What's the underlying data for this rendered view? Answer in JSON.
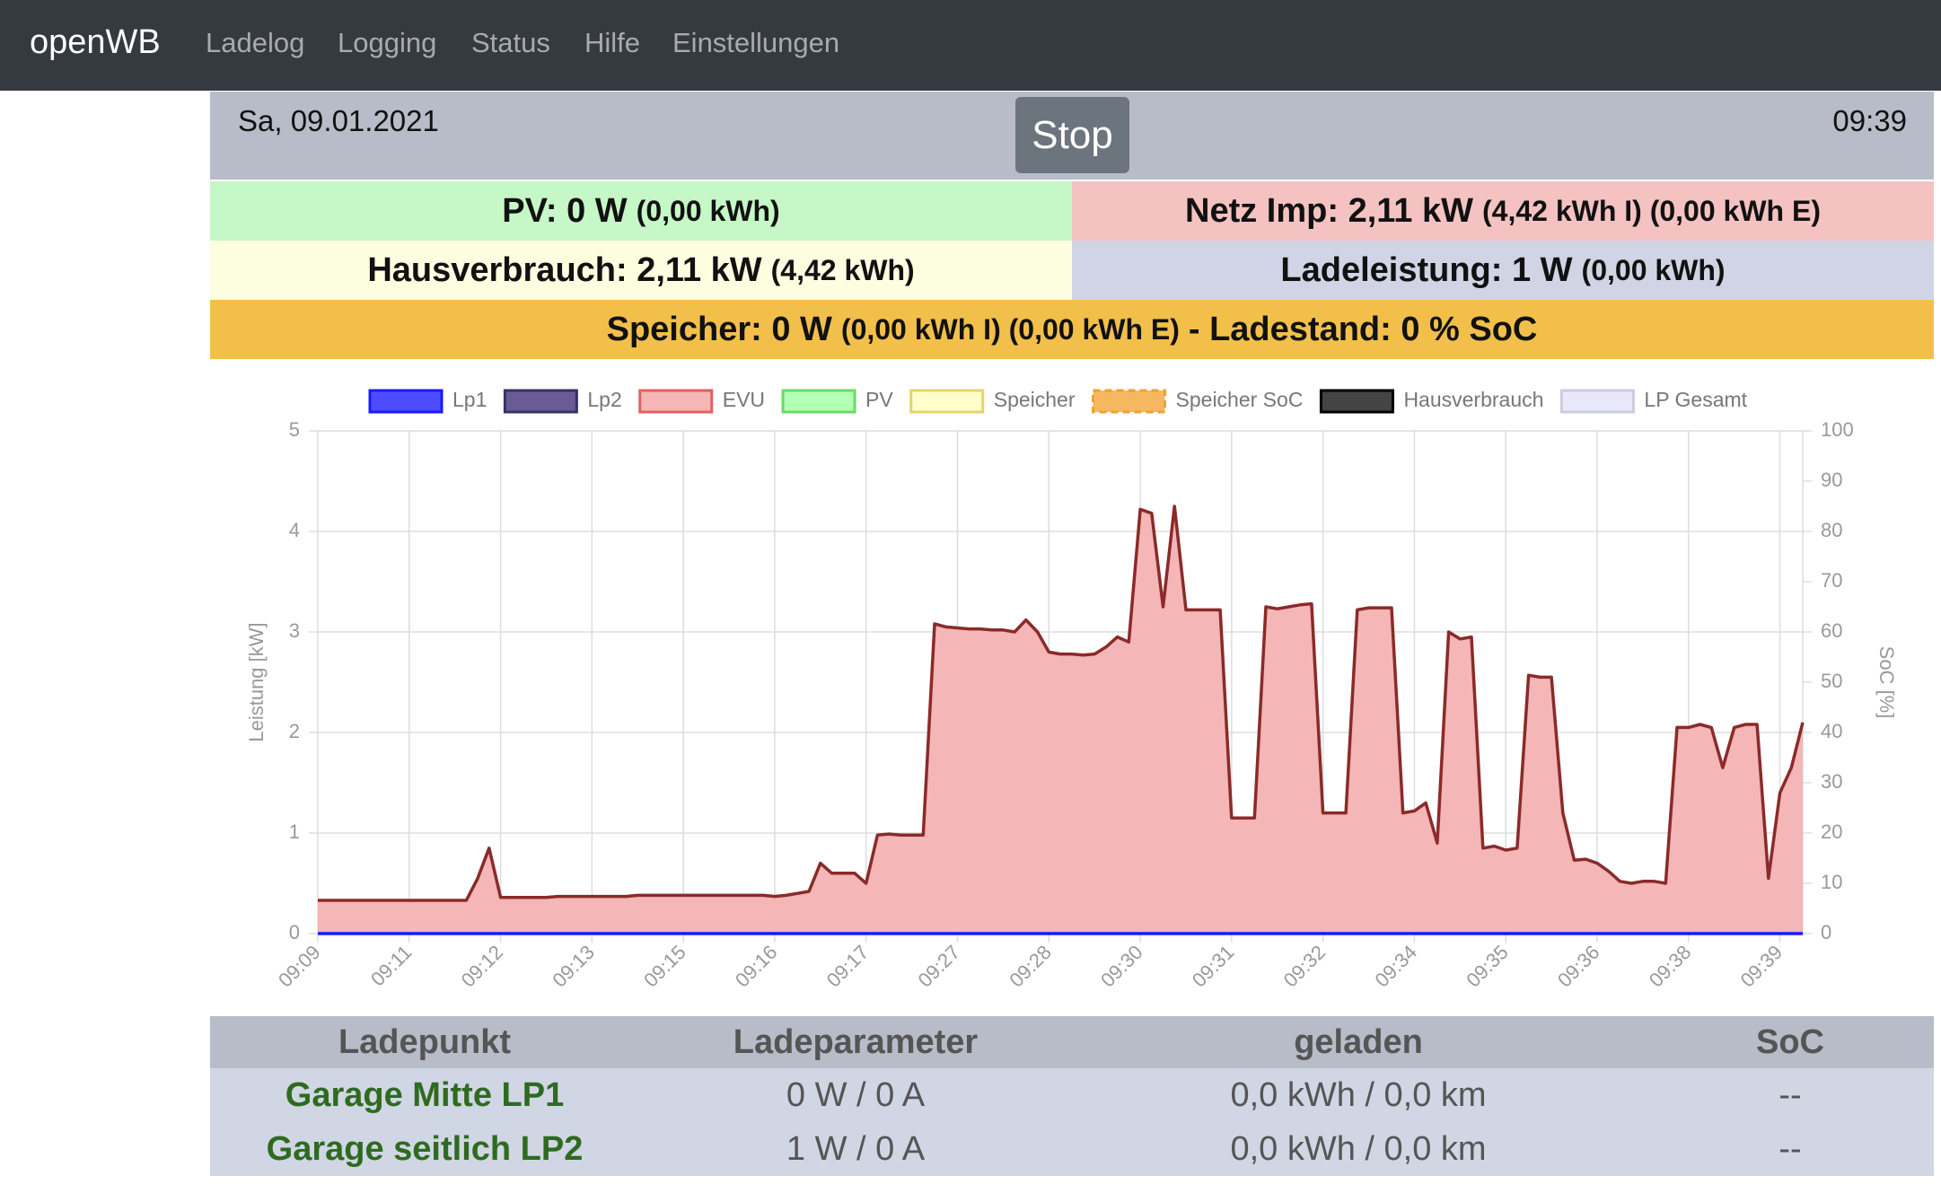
{
  "nav": {
    "brand": "openWB",
    "links": [
      "Ladelog",
      "Logging",
      "Status",
      "Hilfe",
      "Einstellungen"
    ]
  },
  "header": {
    "date": "Sa, 09.01.2021",
    "button": "Stop",
    "time": "09:39"
  },
  "status": {
    "pv": {
      "main": "PV: 0 W",
      "detail": "(0,00 kWh)"
    },
    "netz": {
      "main": "Netz Imp: 2,11 kW",
      "detail": "(4,42 kWh I) (0,00 kWh E)"
    },
    "haus": {
      "main": "Hausverbrauch: 2,11 kW",
      "detail": "(4,42 kWh)"
    },
    "lade": {
      "main": "Ladeleistung: 1 W",
      "detail": "(0,00 kWh)"
    },
    "speicher": {
      "main": "Speicher: 0 W",
      "detail": "(0,00 kWh I) (0,00 kWh E)",
      "soc": "- Ladestand: 0 % SoC"
    }
  },
  "chart_data": {
    "type": "line",
    "ylabel": "Leistung [kW]",
    "y2label": "SoC [%]",
    "ylim": [
      0,
      5
    ],
    "yticks": [
      0,
      1,
      2,
      3,
      4,
      5
    ],
    "y2lim": [
      0,
      100
    ],
    "y2ticks": [
      0,
      10,
      20,
      30,
      40,
      50,
      60,
      70,
      80,
      90,
      100
    ],
    "grid": true,
    "legend_position": "top",
    "x": [
      "09:09",
      null,
      null,
      null,
      null,
      null,
      null,
      null,
      "09:11",
      null,
      null,
      null,
      null,
      null,
      null,
      null,
      "09:12",
      null,
      null,
      null,
      null,
      null,
      null,
      null,
      "09:13",
      null,
      null,
      null,
      null,
      null,
      null,
      null,
      "09:15",
      null,
      null,
      null,
      null,
      null,
      null,
      null,
      "09:16",
      null,
      null,
      null,
      null,
      null,
      null,
      null,
      "09:17",
      null,
      null,
      null,
      null,
      null,
      null,
      null,
      "09:27",
      null,
      null,
      null,
      null,
      null,
      null,
      null,
      "09:28",
      null,
      null,
      null,
      null,
      null,
      null,
      null,
      "09:30",
      null,
      null,
      null,
      null,
      null,
      null,
      null,
      "09:31",
      null,
      null,
      null,
      null,
      null,
      null,
      null,
      "09:32",
      null,
      null,
      null,
      null,
      null,
      null,
      null,
      "09:34",
      null,
      null,
      null,
      null,
      null,
      null,
      null,
      "09:35",
      null,
      null,
      null,
      null,
      null,
      null,
      null,
      "09:36",
      null,
      null,
      null,
      null,
      null,
      null,
      null,
      "09:38",
      null,
      null,
      null,
      null,
      null,
      null,
      null,
      "09:39",
      null,
      null
    ],
    "series": [
      {
        "name": "Lp1",
        "color": "#1a1aff",
        "fill": "#4d4dff",
        "values": [
          0,
          0,
          0,
          0,
          0,
          0,
          0,
          0,
          0,
          0,
          0,
          0,
          0,
          0,
          0,
          0,
          0,
          0,
          0,
          0,
          0,
          0,
          0,
          0,
          0,
          0,
          0,
          0,
          0,
          0,
          0,
          0,
          0,
          0,
          0,
          0,
          0,
          0,
          0,
          0,
          0,
          0,
          0,
          0,
          0,
          0,
          0,
          0,
          0,
          0,
          0,
          0,
          0,
          0,
          0,
          0,
          0,
          0,
          0,
          0,
          0,
          0,
          0,
          0,
          0,
          0,
          0,
          0,
          0,
          0,
          0,
          0,
          0,
          0,
          0,
          0,
          0,
          0,
          0,
          0,
          0,
          0,
          0,
          0,
          0,
          0,
          0,
          0,
          0,
          0,
          0,
          0,
          0,
          0,
          0,
          0,
          0,
          0,
          0,
          0,
          0,
          0,
          0,
          0,
          0,
          0,
          0,
          0,
          0,
          0,
          0,
          0,
          0,
          0,
          0,
          0,
          0,
          0,
          0,
          0,
          0,
          0,
          0,
          0,
          0,
          0,
          0,
          0,
          0,
          0,
          0
        ]
      },
      {
        "name": "Lp2",
        "color": "#333366",
        "fill": "#6b5b95"
      },
      {
        "name": "EVU",
        "color": "#8b2a2a",
        "fill": "#f4b6b6",
        "border": "#e06060",
        "values": [
          0.33,
          0.33,
          0.33,
          0.33,
          0.33,
          0.33,
          0.33,
          0.33,
          0.33,
          0.33,
          0.33,
          0.33,
          0.33,
          0.33,
          0.55,
          0.85,
          0.36,
          0.36,
          0.36,
          0.36,
          0.36,
          0.37,
          0.37,
          0.37,
          0.37,
          0.37,
          0.37,
          0.37,
          0.38,
          0.38,
          0.38,
          0.38,
          0.38,
          0.38,
          0.38,
          0.38,
          0.38,
          0.38,
          0.38,
          0.38,
          0.37,
          0.38,
          0.4,
          0.42,
          0.7,
          0.6,
          0.6,
          0.6,
          0.5,
          0.98,
          0.99,
          0.98,
          0.98,
          0.98,
          3.08,
          3.05,
          3.04,
          3.03,
          3.03,
          3.02,
          3.02,
          3.0,
          3.12,
          3.0,
          2.8,
          2.78,
          2.78,
          2.77,
          2.78,
          2.85,
          2.95,
          2.9,
          4.22,
          4.18,
          3.25,
          4.25,
          3.22,
          3.22,
          3.22,
          3.22,
          1.15,
          1.15,
          1.15,
          3.25,
          3.23,
          3.25,
          3.27,
          3.28,
          1.2,
          1.2,
          1.2,
          3.22,
          3.24,
          3.24,
          3.24,
          1.2,
          1.22,
          1.3,
          0.9,
          3.0,
          2.93,
          2.95,
          0.85,
          0.87,
          0.83,
          0.85,
          2.57,
          2.55,
          2.55,
          1.2,
          0.73,
          0.74,
          0.7,
          0.62,
          0.52,
          0.5,
          0.52,
          0.52,
          0.5,
          2.05,
          2.05,
          2.08,
          2.05,
          1.65,
          2.05,
          2.08,
          2.08,
          0.55,
          1.4,
          1.65,
          2.1
        ]
      },
      {
        "name": "PV",
        "color": "#66dd66",
        "fill": "#b3ffb3"
      },
      {
        "name": "Speicher",
        "color": "#e6d36a",
        "fill": "#ffffcc"
      },
      {
        "name": "Speicher SoC",
        "color": "#f0a030",
        "fill": "#f5b860",
        "dashed": true
      },
      {
        "name": "Hausverbrauch",
        "color": "#000000",
        "fill": "#444444"
      },
      {
        "name": "LP Gesamt",
        "color": "#ccccdd",
        "fill": "#e8e8fa"
      }
    ]
  },
  "table": {
    "header": [
      "Ladepunkt",
      "Ladeparameter",
      "geladen",
      "SoC"
    ],
    "rows": [
      [
        "Garage Mitte LP1",
        "0 W / 0 A",
        "0,0 kWh / 0,0 km",
        "--"
      ],
      [
        "Garage seitlich LP2",
        "1 W / 0 A",
        "0,0 kWh / 0,0 km",
        "--"
      ]
    ]
  }
}
